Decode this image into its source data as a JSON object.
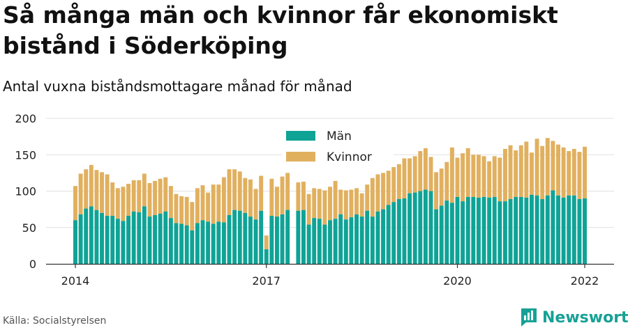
{
  "title": "Så många män och kvinnor får ekonomiskt bistånd i Söderköping",
  "subtitle": "Antal vuxna biståndsmottagare månad för månad",
  "source": "Källa: Socialstyrelsen",
  "brand": {
    "name": "Newsworthy",
    "icon": "newsworthy-logo-icon"
  },
  "colors": {
    "men": "#0fa396",
    "women": "#e1b05f",
    "grid": "#e0e0e0",
    "axis": "#333333",
    "text": "#222222"
  },
  "chart_data": {
    "type": "bar",
    "stacked": true,
    "legend": "top-center",
    "grid": true,
    "ylim": [
      0,
      200
    ],
    "yticks": [
      0,
      50,
      100,
      150,
      200
    ],
    "xticks": [
      "2014",
      "2017",
      "2020",
      "2022"
    ],
    "x_start": "2014-01",
    "x_end": "2022-01",
    "series": [
      {
        "name": "Män",
        "values": [
          60,
          68,
          76,
          79,
          74,
          70,
          66,
          66,
          62,
          59,
          66,
          72,
          71,
          79,
          65,
          67,
          69,
          72,
          63,
          56,
          55,
          53,
          46,
          56,
          60,
          58,
          55,
          58,
          57,
          67,
          74,
          73,
          70,
          65,
          61,
          73,
          20,
          66,
          65,
          68,
          74,
          null,
          73,
          74,
          54,
          63,
          62,
          54,
          60,
          62,
          68,
          61,
          64,
          68,
          65,
          73,
          65,
          72,
          75,
          81,
          85,
          89,
          90,
          97,
          98,
          100,
          102,
          100,
          75,
          80,
          87,
          84,
          92,
          86,
          92,
          92,
          91,
          92,
          91,
          92,
          86,
          86,
          89,
          92,
          92,
          91,
          95,
          94,
          89,
          94,
          101,
          94,
          91,
          94,
          94,
          89,
          90
        ],
        "total": [
          107,
          124,
          130,
          136,
          129,
          126,
          123,
          112,
          104,
          106,
          110,
          115,
          115,
          124,
          111,
          114,
          117,
          119,
          107,
          96,
          93,
          92,
          85,
          104,
          108,
          98,
          109,
          109,
          119,
          130,
          130,
          127,
          118,
          116,
          103,
          121,
          39,
          117,
          106,
          120,
          125,
          null,
          112,
          113,
          96,
          104,
          103,
          101,
          106,
          114,
          102,
          101,
          102,
          104,
          97,
          109,
          118,
          123,
          125,
          128,
          133,
          137,
          145,
          145,
          148,
          155,
          159,
          147,
          126,
          131,
          140,
          160,
          146,
          152,
          159,
          150,
          150,
          148,
          141,
          148,
          146,
          158,
          163,
          156,
          163,
          168,
          153,
          172,
          162,
          173,
          169,
          164,
          160,
          155,
          158,
          154,
          161
        ]
      },
      {
        "name": "Kvinnor",
        "values": [
          47,
          56,
          54,
          57,
          55,
          56,
          57,
          46,
          42,
          47,
          44,
          43,
          44,
          45,
          46,
          47,
          48,
          47,
          44,
          40,
          38,
          39,
          39,
          48,
          48,
          40,
          54,
          51,
          62,
          63,
          56,
          54,
          48,
          51,
          42,
          48,
          19,
          51,
          41,
          52,
          51,
          null,
          39,
          39,
          42,
          41,
          41,
          47,
          46,
          52,
          34,
          40,
          38,
          36,
          32,
          36,
          53,
          51,
          50,
          47,
          48,
          48,
          55,
          48,
          50,
          55,
          57,
          47,
          51,
          51,
          53,
          76,
          54,
          66,
          67,
          58,
          59,
          56,
          50,
          56,
          60,
          72,
          74,
          64,
          71,
          77,
          58,
          78,
          73,
          79,
          68,
          70,
          69,
          61,
          64,
          65,
          71
        ]
      }
    ]
  }
}
